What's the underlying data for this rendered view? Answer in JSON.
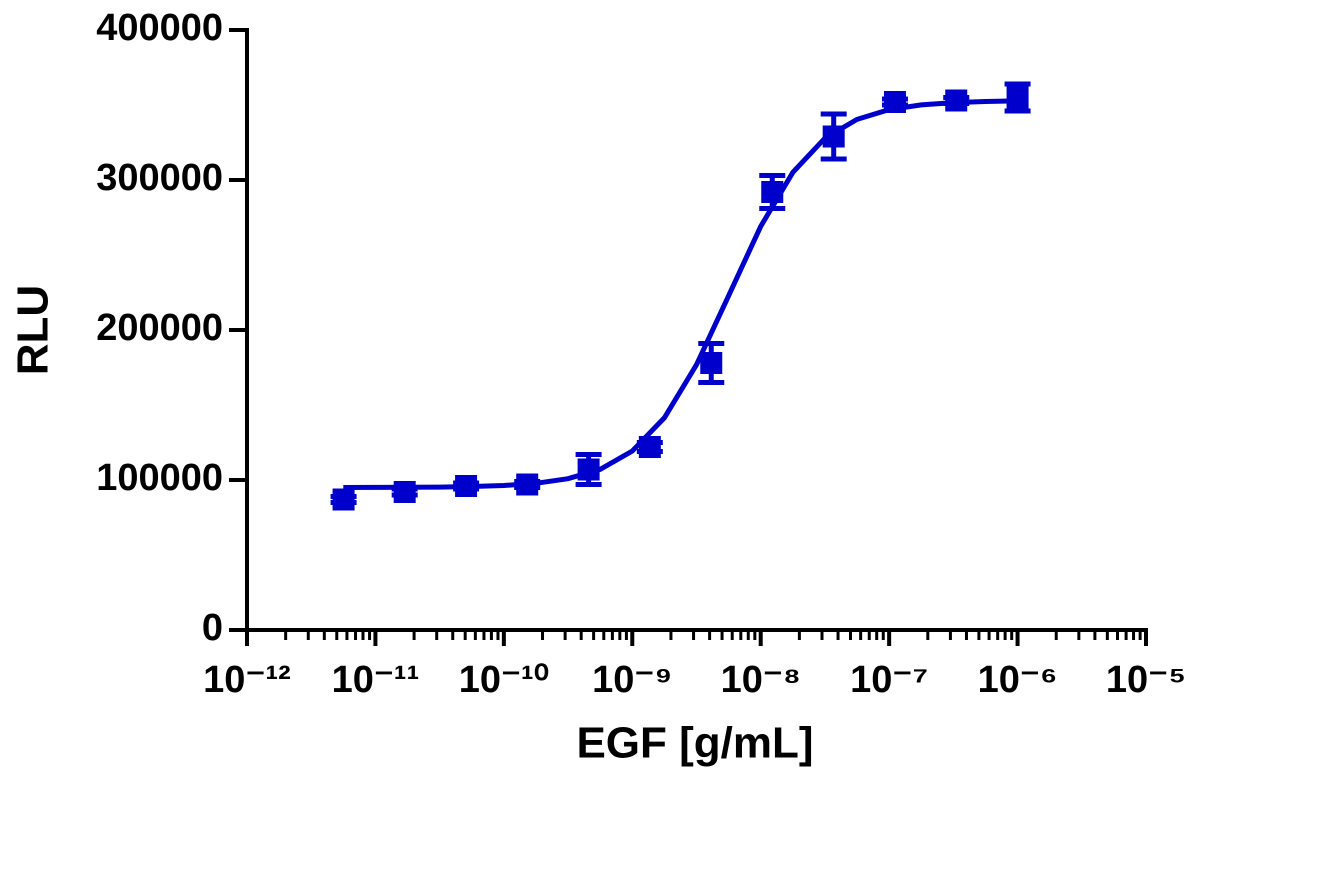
{
  "chart_data": {
    "type": "scatter",
    "xlabel": "EGF [g/mL]",
    "ylabel": "RLU",
    "xscale": "log",
    "xlim": [
      1e-12,
      1e-05
    ],
    "ylim": [
      0,
      400000
    ],
    "xticks": [
      {
        "value": 1e-12,
        "label": "10⁻¹²"
      },
      {
        "value": 1e-11,
        "label": "10⁻¹¹"
      },
      {
        "value": 1e-10,
        "label": "10⁻¹⁰"
      },
      {
        "value": 1e-09,
        "label": "10⁻⁹"
      },
      {
        "value": 1e-08,
        "label": "10⁻⁸"
      },
      {
        "value": 1e-07,
        "label": "10⁻⁷"
      },
      {
        "value": 1e-06,
        "label": "10⁻⁶"
      },
      {
        "value": 1e-05,
        "label": "10⁻⁵"
      }
    ],
    "xminorticks": [
      2e-12,
      3e-12,
      4e-12,
      5e-12,
      6e-12,
      7e-12,
      8e-12,
      9e-12,
      2e-11,
      3e-11,
      4e-11,
      5e-11,
      6e-11,
      7e-11,
      8e-11,
      9e-11,
      2e-10,
      3e-10,
      4e-10,
      5e-10,
      6e-10,
      7e-10,
      8e-10,
      9e-10,
      2e-09,
      3e-09,
      4e-09,
      5e-09,
      6e-09,
      7e-09,
      8e-09,
      9e-09,
      2e-08,
      3e-08,
      4e-08,
      5e-08,
      6e-08,
      7e-08,
      8e-08,
      9e-08,
      2e-07,
      3e-07,
      4e-07,
      5e-07,
      6e-07,
      7e-07,
      8e-07,
      9e-07,
      2e-06,
      3e-06,
      4e-06,
      5e-06,
      6e-06,
      7e-06,
      8e-06,
      9e-06
    ],
    "yticks": [
      0,
      100000,
      200000,
      300000,
      400000
    ],
    "color": "#0000cc",
    "series": [
      {
        "x": [
          5.65e-12,
          1.69e-11,
          5.08e-11,
          1.52e-10,
          4.57e-10,
          1.37e-09,
          4.12e-09,
          1.23e-08,
          3.7e-08,
          1.11e-07,
          3.33e-07,
          1e-06
        ],
        "values": [
          87000,
          92000,
          96000,
          97000,
          107000,
          122000,
          178000,
          292000,
          329000,
          352000,
          353000,
          355000
        ],
        "errors": [
          2000,
          2000,
          2000,
          2000,
          10000,
          3000,
          13000,
          11000,
          15000,
          2000,
          2000,
          9000
        ]
      }
    ],
    "curve": {
      "x": [
        5.62e-12,
        1e-11,
        1.78e-11,
        3.16e-11,
        5.62e-11,
        1e-10,
        1.78e-10,
        3.16e-10,
        5.62e-10,
        1e-09,
        1.78e-09,
        3.16e-09,
        5.62e-09,
        1e-08,
        1.78e-08,
        3.16e-08,
        5.62e-08,
        1e-07,
        1.78e-07,
        3.16e-07,
        5.62e-07,
        1e-06
      ],
      "values": [
        95000,
        95070,
        95140,
        95300,
        95640,
        96340,
        97810,
        100860,
        107100,
        119300,
        141500,
        176900,
        222800,
        269100,
        305100,
        327900,
        340400,
        346900,
        350100,
        351600,
        352300,
        352700
      ]
    }
  }
}
